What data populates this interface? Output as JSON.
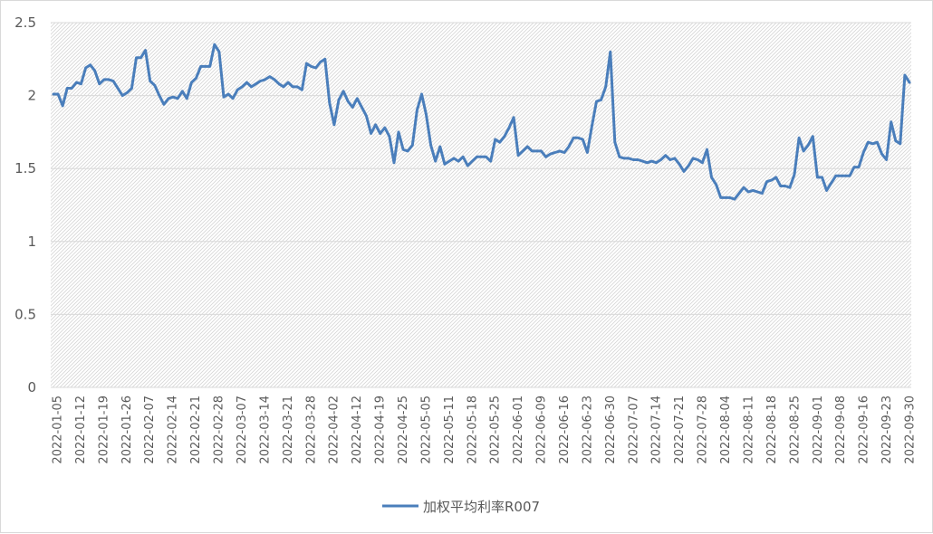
{
  "chart_data": {
    "type": "line",
    "title": "",
    "xlabel": "",
    "ylabel": "",
    "ylim": [
      0,
      2.5
    ],
    "y_ticks": [
      "0",
      "0.5",
      "1",
      "1.5",
      "2",
      "2.5"
    ],
    "x_tick_labels": [
      "2022-01-05",
      "2022-01-12",
      "2022-01-19",
      "2022-01-26",
      "2022-02-07",
      "2022-02-14",
      "2022-02-21",
      "2022-02-28",
      "2022-03-07",
      "2022-03-14",
      "2022-03-21",
      "2022-03-28",
      "2022-04-02",
      "2022-04-12",
      "2022-04-19",
      "2022-04-25",
      "2022-05-05",
      "2022-05-11",
      "2022-05-18",
      "2022-05-25",
      "2022-06-01",
      "2022-06-09",
      "2022-06-16",
      "2022-06-23",
      "2022-06-30",
      "2022-07-07",
      "2022-07-14",
      "2022-07-21",
      "2022-07-28",
      "2022-08-04",
      "2022-08-11",
      "2022-08-18",
      "2022-08-25",
      "2022-09-01",
      "2022-09-08",
      "2022-09-16",
      "2022-09-23",
      "2022-09-30"
    ],
    "grid": "horizontal",
    "legend": "bottom",
    "series": [
      {
        "name": "加权平均利率R007",
        "color": "#4a7ebb",
        "values": [
          2.01,
          2.01,
          1.93,
          2.05,
          2.05,
          2.09,
          2.08,
          2.19,
          2.21,
          2.17,
          2.08,
          2.11,
          2.11,
          2.1,
          2.05,
          2.0,
          2.02,
          2.05,
          2.26,
          2.26,
          2.31,
          2.1,
          2.07,
          2.0,
          1.94,
          1.98,
          1.99,
          1.98,
          2.03,
          1.98,
          2.09,
          2.12,
          2.2,
          2.2,
          2.2,
          2.35,
          2.3,
          1.99,
          2.01,
          1.98,
          2.04,
          2.06,
          2.09,
          2.06,
          2.08,
          2.1,
          2.11,
          2.13,
          2.11,
          2.08,
          2.06,
          2.09,
          2.06,
          2.06,
          2.04,
          2.22,
          2.2,
          2.19,
          2.23,
          2.25,
          1.95,
          1.8,
          1.97,
          2.03,
          1.96,
          1.92,
          1.98,
          1.92,
          1.86,
          1.74,
          1.8,
          1.74,
          1.78,
          1.72,
          1.54,
          1.75,
          1.63,
          1.62,
          1.66,
          1.9,
          2.01,
          1.87,
          1.66,
          1.55,
          1.65,
          1.53,
          1.55,
          1.57,
          1.55,
          1.58,
          1.52,
          1.55,
          1.58,
          1.58,
          1.58,
          1.55,
          1.7,
          1.68,
          1.72,
          1.78,
          1.85,
          1.59,
          1.62,
          1.65,
          1.62,
          1.62,
          1.62,
          1.58,
          1.6,
          1.61,
          1.62,
          1.61,
          1.65,
          1.71,
          1.71,
          1.7,
          1.61,
          1.79,
          1.96,
          1.97,
          2.06,
          2.3,
          1.68,
          1.58,
          1.57,
          1.57,
          1.56,
          1.56,
          1.55,
          1.54,
          1.55,
          1.54,
          1.56,
          1.59,
          1.56,
          1.57,
          1.53,
          1.48,
          1.52,
          1.57,
          1.56,
          1.54,
          1.63,
          1.44,
          1.39,
          1.3,
          1.3,
          1.3,
          1.29,
          1.33,
          1.37,
          1.34,
          1.35,
          1.34,
          1.33,
          1.41,
          1.42,
          1.44,
          1.38,
          1.38,
          1.37,
          1.46,
          1.71,
          1.62,
          1.66,
          1.72,
          1.44,
          1.44,
          1.35,
          1.4,
          1.45,
          1.45,
          1.45,
          1.45,
          1.51,
          1.51,
          1.61,
          1.68,
          1.67,
          1.68,
          1.6,
          1.56,
          1.82,
          1.69,
          1.67,
          2.14,
          2.09
        ]
      }
    ]
  }
}
